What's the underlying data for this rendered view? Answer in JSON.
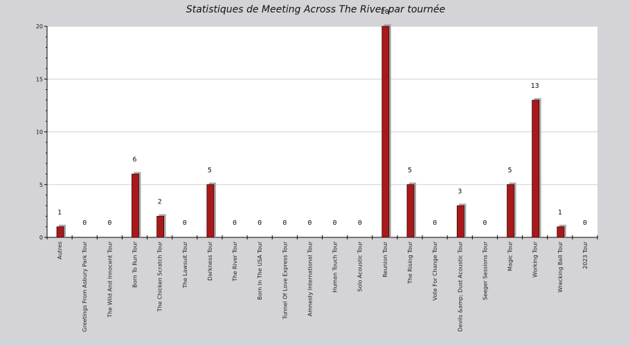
{
  "chart_data": {
    "type": "bar",
    "title": "Statistiques de Meeting Across The River par tournée",
    "xlabel": "",
    "ylabel": "",
    "ylim": [
      0,
      20
    ],
    "yticks": [
      0,
      5,
      10,
      15,
      20
    ],
    "grid": true,
    "categories": [
      "Autres",
      "Greetings From Asbury Park Tour",
      "The Wild And Innocent Tour",
      "Born To Run Tour",
      "The Chicken Scratch Tour",
      "The Lawsuit Tour",
      "Darkness Tour",
      "The River Tour",
      "Born In The USA Tour",
      "Tunnel Of Love Express Tour",
      "Amnesty International Tour",
      "Human Touch Tour",
      "Solo Acoustic Tour",
      "Reunion Tour",
      "The Rising Tour",
      "Vote For Change Tour",
      "Devils &amp; Dust Acoustic Tour",
      "Seeger Sessions Tour",
      "Magic Tour",
      "Working Tour",
      "Wrecking Ball Tour",
      "2023 Tour"
    ],
    "values": [
      1,
      0,
      0,
      6,
      2,
      0,
      5,
      0,
      0,
      0,
      0,
      0,
      0,
      20,
      5,
      0,
      3,
      0,
      5,
      13,
      1,
      0
    ],
    "colors": {
      "bar": "#a8191b",
      "shadow": "#a9a9a9",
      "plot_bg": "#ffffff",
      "page_bg": "#d4d3d8",
      "grid": "#cfcfcf"
    }
  }
}
